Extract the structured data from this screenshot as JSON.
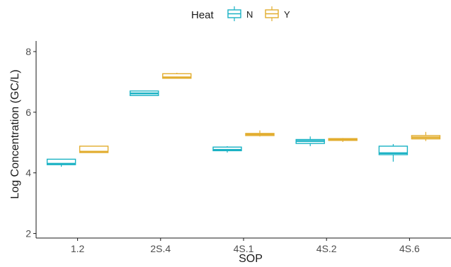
{
  "chart_data": {
    "type": "box",
    "title": "",
    "xlabel": "SOP",
    "ylabel": "Log Concentration (GC/L)",
    "ylim": [
      1.85,
      8.35
    ],
    "yticks": [
      "2",
      "4",
      "6",
      "8"
    ],
    "categories": [
      "1.2",
      "2S.4",
      "4S.1",
      "4S.2",
      "4S.6"
    ],
    "legend": {
      "title": "Heat",
      "position": "top"
    },
    "grid": false,
    "series": [
      {
        "name": "N",
        "color": "#1ab2c4",
        "boxes": [
          {
            "whisker_low": 4.2,
            "q1": 4.27,
            "median": 4.3,
            "q3": 4.45,
            "whisker_high": 4.45
          },
          {
            "whisker_low": 6.55,
            "q1": 6.55,
            "median": 6.62,
            "q3": 6.7,
            "whisker_high": 6.7
          },
          {
            "whisker_low": 4.67,
            "q1": 4.73,
            "median": 4.76,
            "q3": 4.85,
            "whisker_high": 4.88
          },
          {
            "whisker_low": 4.88,
            "q1": 4.97,
            "median": 5.05,
            "q3": 5.1,
            "whisker_high": 5.2
          },
          {
            "whisker_low": 4.37,
            "q1": 4.6,
            "median": 4.65,
            "q3": 4.88,
            "whisker_high": 4.95
          }
        ]
      },
      {
        "name": "Y",
        "color": "#e2ad2e",
        "boxes": [
          {
            "whisker_low": 4.67,
            "q1": 4.67,
            "median": 4.7,
            "q3": 4.88,
            "whisker_high": 4.88
          },
          {
            "whisker_low": 7.12,
            "q1": 7.12,
            "median": 7.15,
            "q3": 7.27,
            "whisker_high": 7.3
          },
          {
            "whisker_low": 5.2,
            "q1": 5.23,
            "median": 5.27,
            "q3": 5.3,
            "whisker_high": 5.4
          },
          {
            "whisker_low": 5.02,
            "q1": 5.07,
            "median": 5.1,
            "q3": 5.13,
            "whisker_high": 5.15
          },
          {
            "whisker_low": 5.05,
            "q1": 5.12,
            "median": 5.17,
            "q3": 5.23,
            "whisker_high": 5.35
          }
        ]
      }
    ]
  }
}
